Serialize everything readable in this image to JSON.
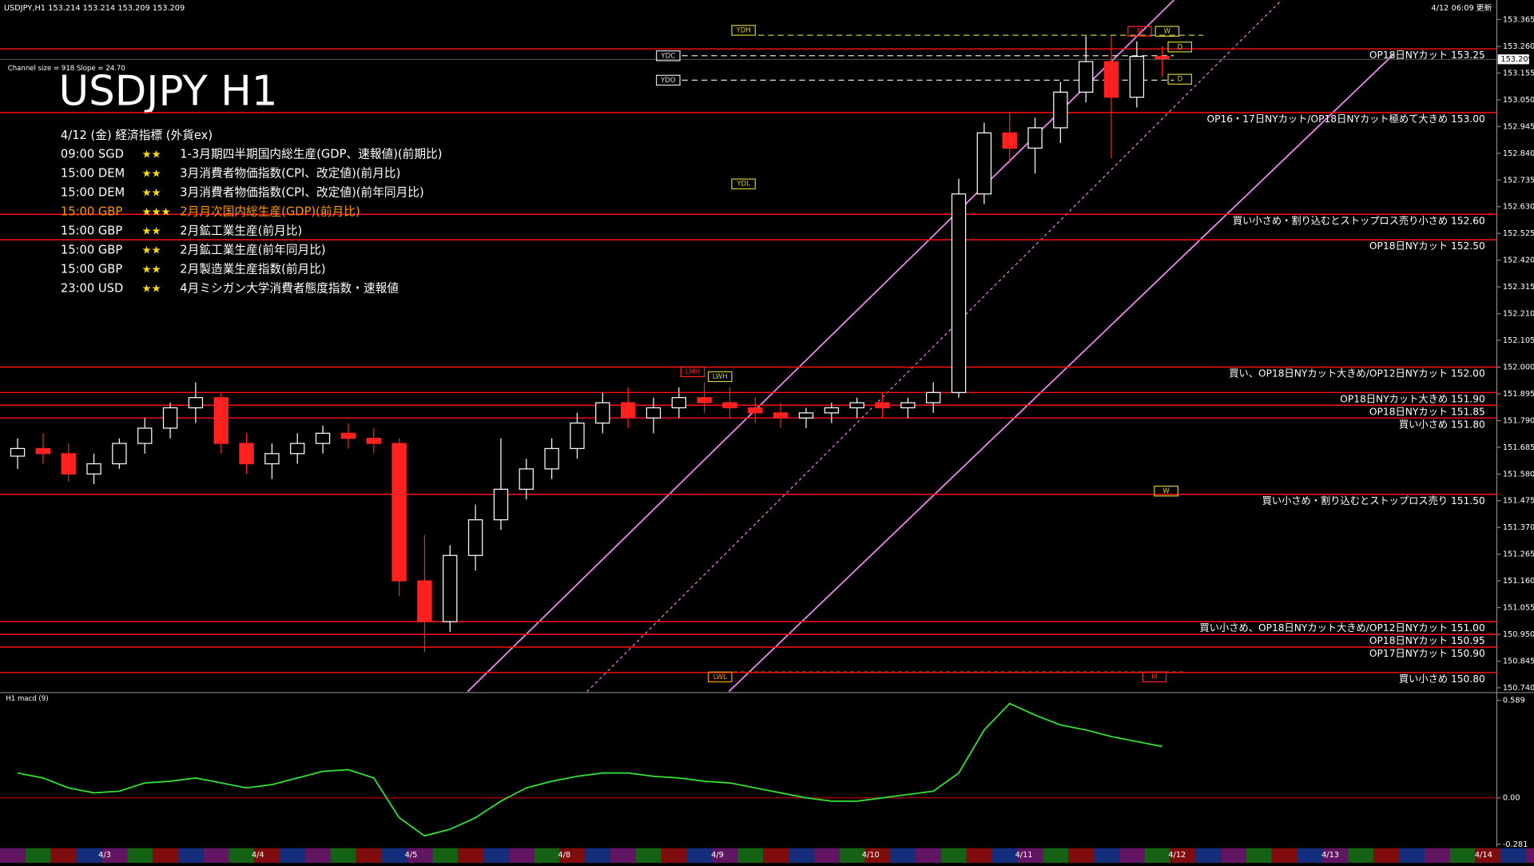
{
  "chart_data": [
    {
      "type": "candlestick",
      "title": "USDJPY H1",
      "header": "USDJPY,H1  153.214 153.214 153.209 153.209",
      "updated": "4/12 06:09 更新",
      "channel_info": "Channel size = 918 Slope = 24.70",
      "up_color": "#ffffff",
      "down_color": "#ff2020",
      "open": [
        151.65,
        151.68,
        151.66,
        151.58,
        151.62,
        151.7,
        151.76,
        151.84,
        151.88,
        151.7,
        151.62,
        151.66,
        151.7,
        151.74,
        151.72,
        151.7,
        151.16,
        151.0,
        151.26,
        151.4,
        151.52,
        151.6,
        151.68,
        151.78,
        151.86,
        151.8,
        151.84,
        151.88,
        151.86,
        151.84,
        151.82,
        151.8,
        151.82,
        151.84,
        151.86,
        151.84,
        151.86,
        151.9,
        152.68,
        152.92,
        152.86,
        152.94,
        153.08,
        153.2,
        153.06,
        153.22
      ],
      "high": [
        151.72,
        151.74,
        151.7,
        151.66,
        151.72,
        151.8,
        151.86,
        151.94,
        151.9,
        151.74,
        151.7,
        151.74,
        151.77,
        151.78,
        151.76,
        151.72,
        151.34,
        151.3,
        151.46,
        151.72,
        151.64,
        151.72,
        151.82,
        151.9,
        151.92,
        151.88,
        151.92,
        151.94,
        151.92,
        151.88,
        151.86,
        151.84,
        151.86,
        151.88,
        151.9,
        151.88,
        151.94,
        152.74,
        152.96,
        153.0,
        152.98,
        153.12,
        153.3,
        153.3,
        153.28,
        153.26
      ],
      "low": [
        151.6,
        151.62,
        151.55,
        151.54,
        151.6,
        151.66,
        151.72,
        151.78,
        151.66,
        151.58,
        151.56,
        151.62,
        151.66,
        151.68,
        151.66,
        151.1,
        150.88,
        150.96,
        151.2,
        151.36,
        151.48,
        151.56,
        151.64,
        151.74,
        151.76,
        151.74,
        151.8,
        151.82,
        151.8,
        151.78,
        151.76,
        151.76,
        151.78,
        151.8,
        151.8,
        151.8,
        151.82,
        151.88,
        152.64,
        152.8,
        152.76,
        152.88,
        153.04,
        152.82,
        153.02,
        153.14
      ],
      "close": [
        151.68,
        151.66,
        151.58,
        151.62,
        151.7,
        151.76,
        151.84,
        151.88,
        151.7,
        151.62,
        151.66,
        151.7,
        151.74,
        151.72,
        151.7,
        151.16,
        151.0,
        151.26,
        151.4,
        151.52,
        151.6,
        151.68,
        151.78,
        151.86,
        151.8,
        151.84,
        151.88,
        151.86,
        151.84,
        151.82,
        151.8,
        151.82,
        151.84,
        151.86,
        151.84,
        151.86,
        151.9,
        152.68,
        152.92,
        152.86,
        152.94,
        153.08,
        153.2,
        153.06,
        153.22,
        153.21
      ],
      "current_price": 153.209,
      "ylim": [
        150.725,
        153.442
      ],
      "yticks": [
        153.365,
        {
          "value": 153.26,
          "label": "153.260"
        },
        153.155,
        {
          "value": 153.05,
          "label": "153.050"
        },
        152.945,
        {
          "value": 152.84,
          "label": "152.840"
        },
        152.735,
        {
          "value": 152.63,
          "label": "152.630"
        },
        152.525,
        {
          "value": 152.42,
          "label": "152.420"
        },
        152.315,
        {
          "value": 152.21,
          "label": "152.210"
        },
        152.105,
        {
          "value": 152,
          "label": "152.000"
        },
        151.895,
        {
          "value": 151.79,
          "label": "151.790"
        },
        151.685,
        {
          "value": 151.58,
          "label": "151.580"
        },
        151.475,
        {
          "value": 151.37,
          "label": "151.370"
        },
        151.265,
        {
          "value": 151.16,
          "label": "151.160"
        },
        151.055,
        {
          "value": 150.95,
          "label": "150.950"
        },
        150.845,
        {
          "value": 150.74,
          "label": "150.740"
        }
      ],
      "level_color": "#ff1010",
      "levels": [
        {
          "value": 153.25,
          "label": "OP18日NYカット 153.25"
        },
        {
          "value": 153.0,
          "label": "OP16・17日NYカット/OP18日NYカット極めて大きめ 153.00"
        },
        {
          "value": 152.6,
          "label": "買い小さめ・割り込むとストップロス売り小さめ 152.60"
        },
        {
          "value": 152.5,
          "label": "OP18日NYカット 152.50"
        },
        {
          "value": 152.0,
          "label": "買い、OP18日NYカット大きめ/OP12日NYカット 152.00"
        },
        {
          "value": 151.9,
          "label": "OP18日NYカット大きめ 151.90"
        },
        {
          "value": 151.85,
          "label": "OP18日NYカット 151.85"
        },
        {
          "value": 151.8,
          "label": "買い小さめ 151.80"
        },
        {
          "value": 151.5,
          "label": "買い小さめ・割り込むとストップロス売り 151.50"
        },
        {
          "value": 151.0,
          "label": "買い小さめ、OP18日NYカット大きめ/OP12日NYカット 151.00"
        },
        {
          "value": 150.95,
          "label": "OP18日NYカット 150.95"
        },
        {
          "value": 150.9,
          "label": "OP17日NYカット 150.90"
        },
        {
          "value": 150.8,
          "label": "買い小さめ 150.80"
        }
      ],
      "markers": [
        "YDH",
        "YDC",
        "YDO",
        "YDL",
        "LMH",
        "LWH",
        "LWL",
        "W",
        "M",
        "M",
        "W",
        "D",
        "D"
      ],
      "date_labels": [
        "4/3",
        "4/4",
        "4/5",
        "4/8",
        "4/9",
        "4/10",
        "4/11",
        "4/12",
        "4/13",
        "4/14"
      ]
    },
    {
      "type": "line",
      "title": "H1 macd (9)",
      "color": "#33dd33",
      "values": [
        0.15,
        0.12,
        0.06,
        0.03,
        0.04,
        0.09,
        0.1,
        0.12,
        0.09,
        0.06,
        0.08,
        0.12,
        0.16,
        0.17,
        0.12,
        -0.12,
        -0.23,
        -0.19,
        -0.12,
        -0.02,
        0.06,
        0.1,
        0.13,
        0.15,
        0.15,
        0.13,
        0.12,
        0.1,
        0.09,
        0.06,
        0.03,
        0.0,
        -0.02,
        -0.02,
        0.0,
        0.02,
        0.04,
        0.15,
        0.41,
        0.57,
        0.5,
        0.44,
        0.41,
        0.37,
        0.34,
        0.31
      ],
      "ylim": [
        -0.298,
        0.624
      ],
      "yticks": [
        0.589,
        {
          "value": 0,
          "label": "0.00"
        },
        -0.281
      ]
    }
  ],
  "events": {
    "heading": "4/12 (金) 経済指標 (外貨ex)",
    "rows": [
      {
        "time": "09:00 SGD",
        "stars": "★★",
        "text": "1-3月期四半期国内総生産(GDP、速報値)(前期比)",
        "color": "#ffffff"
      },
      {
        "time": "15:00 DEM",
        "stars": "★★",
        "text": "3月消費者物価指数(CPI、改定値)(前月比)",
        "color": "#ffffff"
      },
      {
        "time": "15:00 DEM",
        "stars": "★★",
        "text": "3月消費者物価指数(CPI、改定値)(前年同月比)",
        "color": "#ffffff"
      },
      {
        "time": "15:00 GBP",
        "stars": "★★★",
        "text": "2月月次国内総生産(GDP)(前月比)",
        "color": "#ff9900"
      },
      {
        "time": "15:00 GBP",
        "stars": "★★",
        "text": "2月鉱工業生産(前月比)",
        "color": "#ffffff"
      },
      {
        "time": "15:00 GBP",
        "stars": "★★",
        "text": "2月鉱工業生産(前年同月比)",
        "color": "#ffffff"
      },
      {
        "time": "15:00 GBP",
        "stars": "★★",
        "text": "2月製造業生産指数(前月比)",
        "color": "#ffffff"
      },
      {
        "time": "23:00 USD",
        "stars": "★★",
        "text": "4月ミシガン大学消費者態度指数・速報値",
        "color": "#ffffff"
      }
    ]
  }
}
